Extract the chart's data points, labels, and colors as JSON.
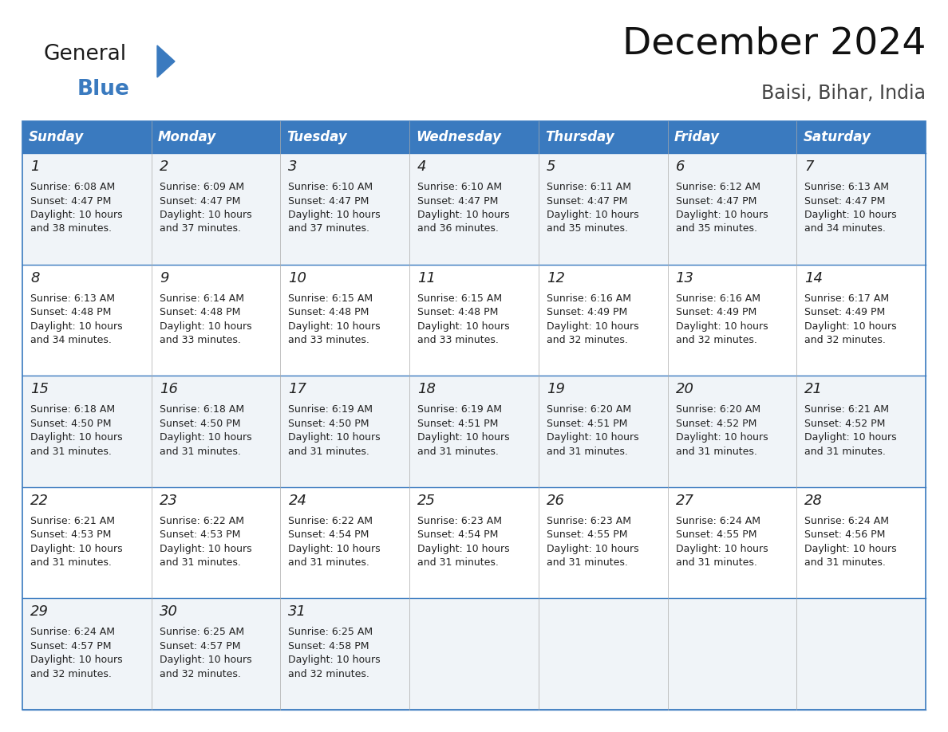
{
  "title": "December 2024",
  "subtitle": "Baisi, Bihar, India",
  "header_color": "#3a7abf",
  "header_text_color": "#ffffff",
  "cell_bg_even": "#f0f4f8",
  "cell_bg_odd": "#ffffff",
  "border_color": "#3a7abf",
  "text_color": "#222222",
  "day_headers": [
    "Sunday",
    "Monday",
    "Tuesday",
    "Wednesday",
    "Thursday",
    "Friday",
    "Saturday"
  ],
  "weeks": [
    [
      {
        "day": 1,
        "sunrise": "6:08 AM",
        "sunset": "4:47 PM",
        "daylight": "10 hours and 38 minutes."
      },
      {
        "day": 2,
        "sunrise": "6:09 AM",
        "sunset": "4:47 PM",
        "daylight": "10 hours and 37 minutes."
      },
      {
        "day": 3,
        "sunrise": "6:10 AM",
        "sunset": "4:47 PM",
        "daylight": "10 hours and 37 minutes."
      },
      {
        "day": 4,
        "sunrise": "6:10 AM",
        "sunset": "4:47 PM",
        "daylight": "10 hours and 36 minutes."
      },
      {
        "day": 5,
        "sunrise": "6:11 AM",
        "sunset": "4:47 PM",
        "daylight": "10 hours and 35 minutes."
      },
      {
        "day": 6,
        "sunrise": "6:12 AM",
        "sunset": "4:47 PM",
        "daylight": "10 hours and 35 minutes."
      },
      {
        "day": 7,
        "sunrise": "6:13 AM",
        "sunset": "4:47 PM",
        "daylight": "10 hours and 34 minutes."
      }
    ],
    [
      {
        "day": 8,
        "sunrise": "6:13 AM",
        "sunset": "4:48 PM",
        "daylight": "10 hours and 34 minutes."
      },
      {
        "day": 9,
        "sunrise": "6:14 AM",
        "sunset": "4:48 PM",
        "daylight": "10 hours and 33 minutes."
      },
      {
        "day": 10,
        "sunrise": "6:15 AM",
        "sunset": "4:48 PM",
        "daylight": "10 hours and 33 minutes."
      },
      {
        "day": 11,
        "sunrise": "6:15 AM",
        "sunset": "4:48 PM",
        "daylight": "10 hours and 33 minutes."
      },
      {
        "day": 12,
        "sunrise": "6:16 AM",
        "sunset": "4:49 PM",
        "daylight": "10 hours and 32 minutes."
      },
      {
        "day": 13,
        "sunrise": "6:16 AM",
        "sunset": "4:49 PM",
        "daylight": "10 hours and 32 minutes."
      },
      {
        "day": 14,
        "sunrise": "6:17 AM",
        "sunset": "4:49 PM",
        "daylight": "10 hours and 32 minutes."
      }
    ],
    [
      {
        "day": 15,
        "sunrise": "6:18 AM",
        "sunset": "4:50 PM",
        "daylight": "10 hours and 31 minutes."
      },
      {
        "day": 16,
        "sunrise": "6:18 AM",
        "sunset": "4:50 PM",
        "daylight": "10 hours and 31 minutes."
      },
      {
        "day": 17,
        "sunrise": "6:19 AM",
        "sunset": "4:50 PM",
        "daylight": "10 hours and 31 minutes."
      },
      {
        "day": 18,
        "sunrise": "6:19 AM",
        "sunset": "4:51 PM",
        "daylight": "10 hours and 31 minutes."
      },
      {
        "day": 19,
        "sunrise": "6:20 AM",
        "sunset": "4:51 PM",
        "daylight": "10 hours and 31 minutes."
      },
      {
        "day": 20,
        "sunrise": "6:20 AM",
        "sunset": "4:52 PM",
        "daylight": "10 hours and 31 minutes."
      },
      {
        "day": 21,
        "sunrise": "6:21 AM",
        "sunset": "4:52 PM",
        "daylight": "10 hours and 31 minutes."
      }
    ],
    [
      {
        "day": 22,
        "sunrise": "6:21 AM",
        "sunset": "4:53 PM",
        "daylight": "10 hours and 31 minutes."
      },
      {
        "day": 23,
        "sunrise": "6:22 AM",
        "sunset": "4:53 PM",
        "daylight": "10 hours and 31 minutes."
      },
      {
        "day": 24,
        "sunrise": "6:22 AM",
        "sunset": "4:54 PM",
        "daylight": "10 hours and 31 minutes."
      },
      {
        "day": 25,
        "sunrise": "6:23 AM",
        "sunset": "4:54 PM",
        "daylight": "10 hours and 31 minutes."
      },
      {
        "day": 26,
        "sunrise": "6:23 AM",
        "sunset": "4:55 PM",
        "daylight": "10 hours and 31 minutes."
      },
      {
        "day": 27,
        "sunrise": "6:24 AM",
        "sunset": "4:55 PM",
        "daylight": "10 hours and 31 minutes."
      },
      {
        "day": 28,
        "sunrise": "6:24 AM",
        "sunset": "4:56 PM",
        "daylight": "10 hours and 31 minutes."
      }
    ],
    [
      {
        "day": 29,
        "sunrise": "6:24 AM",
        "sunset": "4:57 PM",
        "daylight": "10 hours and 32 minutes."
      },
      {
        "day": 30,
        "sunrise": "6:25 AM",
        "sunset": "4:57 PM",
        "daylight": "10 hours and 32 minutes."
      },
      {
        "day": 31,
        "sunrise": "6:25 AM",
        "sunset": "4:58 PM",
        "daylight": "10 hours and 32 minutes."
      },
      null,
      null,
      null,
      null
    ]
  ],
  "logo_general_color": "#1a1a1a",
  "logo_blue_color": "#3a7abf",
  "fig_width": 11.88,
  "fig_height": 9.18,
  "dpi": 100
}
